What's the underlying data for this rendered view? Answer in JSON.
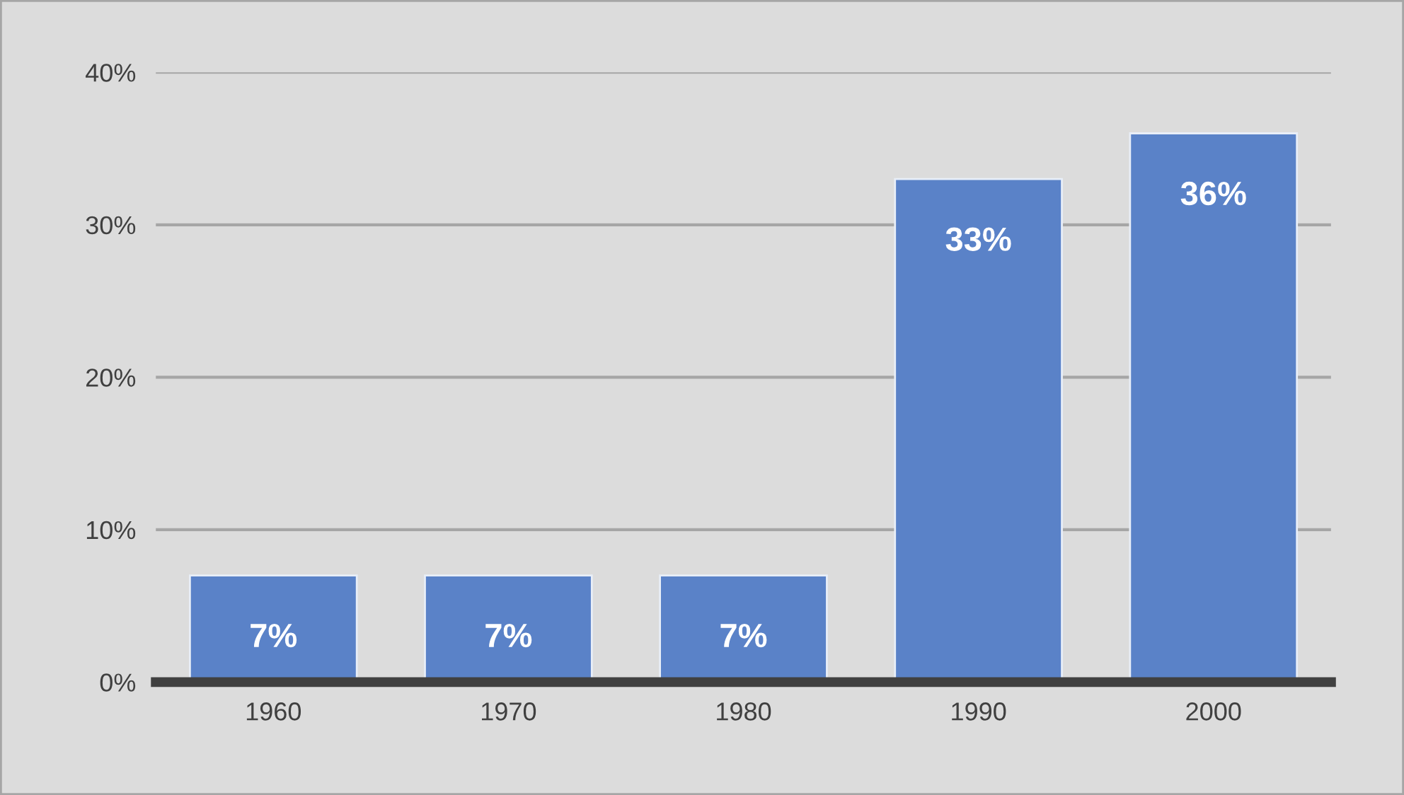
{
  "chart_data": {
    "type": "bar",
    "categories": [
      "1960",
      "1970",
      "1980",
      "1990",
      "2000"
    ],
    "values": [
      7,
      7,
      7,
      33,
      36
    ],
    "value_labels": [
      "7%",
      "7%",
      "7%",
      "33%",
      "36%"
    ],
    "color": "#5a82c8",
    "ylim": [
      0,
      40
    ],
    "yticks": [
      {
        "value": 0,
        "label": "0%"
      },
      {
        "value": 10,
        "label": "10%"
      },
      {
        "value": 20,
        "label": "20%"
      },
      {
        "value": 30,
        "label": "30%"
      },
      {
        "value": 40,
        "label": "40%"
      }
    ],
    "grid": "y",
    "legend": false
  }
}
